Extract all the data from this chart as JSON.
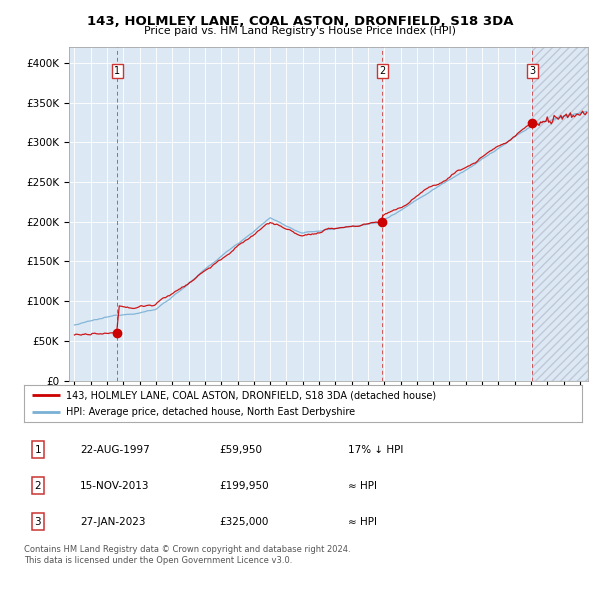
{
  "title": "143, HOLMLEY LANE, COAL ASTON, DRONFIELD, S18 3DA",
  "subtitle": "Price paid vs. HM Land Registry's House Price Index (HPI)",
  "bg_color": "#dce9f5",
  "red_line_label": "143, HOLMLEY LANE, COAL ASTON, DRONFIELD, S18 3DA (detached house)",
  "blue_line_label": "HPI: Average price, detached house, North East Derbyshire",
  "sale_dates": [
    "1997-08-22",
    "2013-11-15",
    "2023-01-27"
  ],
  "sale_prices": [
    59950,
    199950,
    325000
  ],
  "sale_labels": [
    "1",
    "2",
    "3"
  ],
  "sale_annotations": [
    "22-AUG-1997",
    "15-NOV-2013",
    "27-JAN-2023"
  ],
  "sale_prices_str": [
    "£59,950",
    "£199,950",
    "£325,000"
  ],
  "sale_hpi_str": [
    "17% ↓ HPI",
    "≈ HPI",
    "≈ HPI"
  ],
  "footer": [
    "Contains HM Land Registry data © Crown copyright and database right 2024.",
    "This data is licensed under the Open Government Licence v3.0."
  ],
  "ylim": [
    0,
    420000
  ],
  "yticks": [
    0,
    50000,
    100000,
    150000,
    200000,
    250000,
    300000,
    350000,
    400000
  ],
  "ytick_labels": [
    "£0",
    "£50K",
    "£100K",
    "£150K",
    "£200K",
    "£250K",
    "£300K",
    "£350K",
    "£400K"
  ],
  "red_color": "#cc0000",
  "blue_color": "#7ab0d4",
  "dashed_red": "#cc3333"
}
